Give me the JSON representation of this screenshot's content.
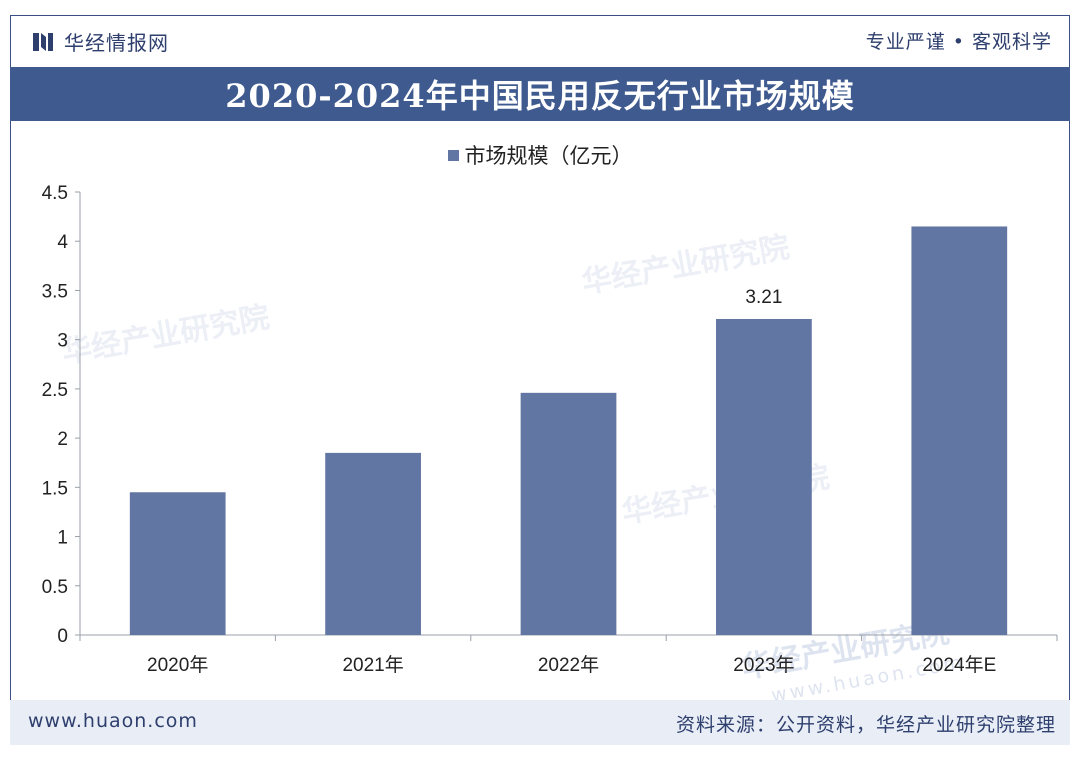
{
  "header": {
    "brand_name": "华经情报网",
    "slogan": "专业严谨 • 客观科学"
  },
  "title": "2020-2024年中国民用反无行业市场规模",
  "legend": {
    "label": "市场规模（亿元）"
  },
  "chart_data": {
    "type": "bar",
    "title": "2020-2024年中国民用反无行业市场规模",
    "categories": [
      "2020年",
      "2021年",
      "2022年",
      "2023年",
      "2024年E"
    ],
    "series": [
      {
        "name": "市场规模（亿元）",
        "values": [
          1.45,
          1.85,
          2.46,
          3.21,
          4.15
        ]
      }
    ],
    "data_labels": [
      null,
      null,
      null,
      "3.21",
      null
    ],
    "ylim": [
      0,
      4.5
    ],
    "yticks": [
      "0",
      "0.5",
      "1",
      "1.5",
      "2",
      "2.5",
      "3",
      "3.5",
      "4",
      "4.5"
    ],
    "ytick_values": [
      0,
      0.5,
      1,
      1.5,
      2,
      2.5,
      3,
      3.5,
      4,
      4.5
    ],
    "xlabel": "",
    "ylabel": "",
    "grid": false,
    "bar_color": "#6276a3"
  },
  "watermark": {
    "text": "华经产业研究院",
    "url": "www.huaon.com"
  },
  "footer": {
    "url": "www.huaon.com",
    "source": "资料来源：公开资料，华经产业研究院整理"
  },
  "colors": {
    "accent": "#3f5a8f",
    "bar": "#6276a3",
    "footer_bg": "#e9eef6"
  }
}
